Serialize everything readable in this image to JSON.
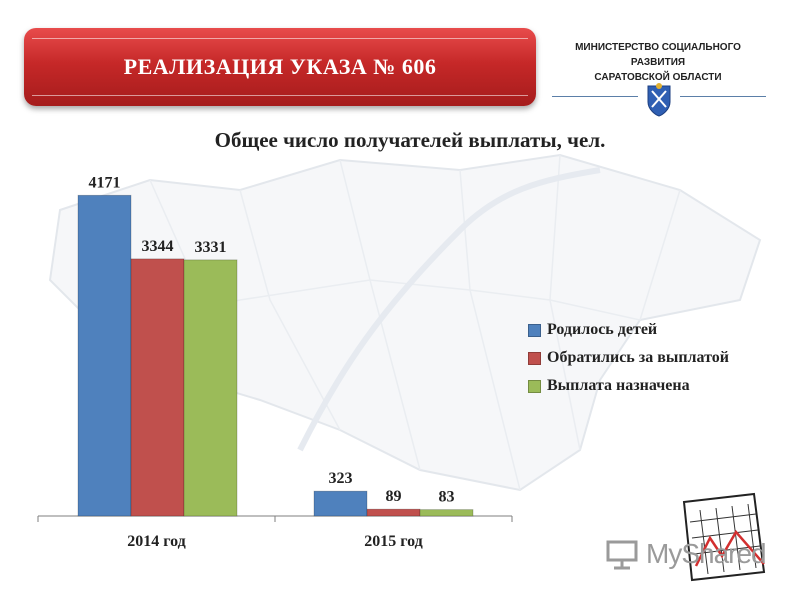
{
  "header": {
    "banner_title": "РЕАЛИЗАЦИЯ УКАЗА № 606",
    "ministry_line1": "МИНИСТЕРСТВО СОЦИАЛЬНОГО РАЗВИТИЯ",
    "ministry_line2": "САРАТОВСКОЙ ОБЛАСТИ"
  },
  "watermark": {
    "logo_text": "MyShared"
  },
  "colors": {
    "banner": "#c62828",
    "series_1": "#4f81bd",
    "series_2": "#c0504d",
    "series_3": "#9bbb59"
  },
  "chart_data": {
    "type": "bar",
    "title": "Общее число получателей выплаты, чел.",
    "categories": [
      "2014 год",
      "2015 год"
    ],
    "series": [
      {
        "name": "Родилось детей",
        "values": [
          4171,
          323
        ],
        "color": "#4f81bd"
      },
      {
        "name": "Обратились за выплатой",
        "values": [
          3344,
          89
        ],
        "color": "#c0504d"
      },
      {
        "name": "Выплата назначена",
        "values": [
          3331,
          83
        ],
        "color": "#9bbb59"
      }
    ],
    "ylim": [
      0,
      4500
    ],
    "grid": false,
    "legend": "right",
    "data_labels": true
  }
}
